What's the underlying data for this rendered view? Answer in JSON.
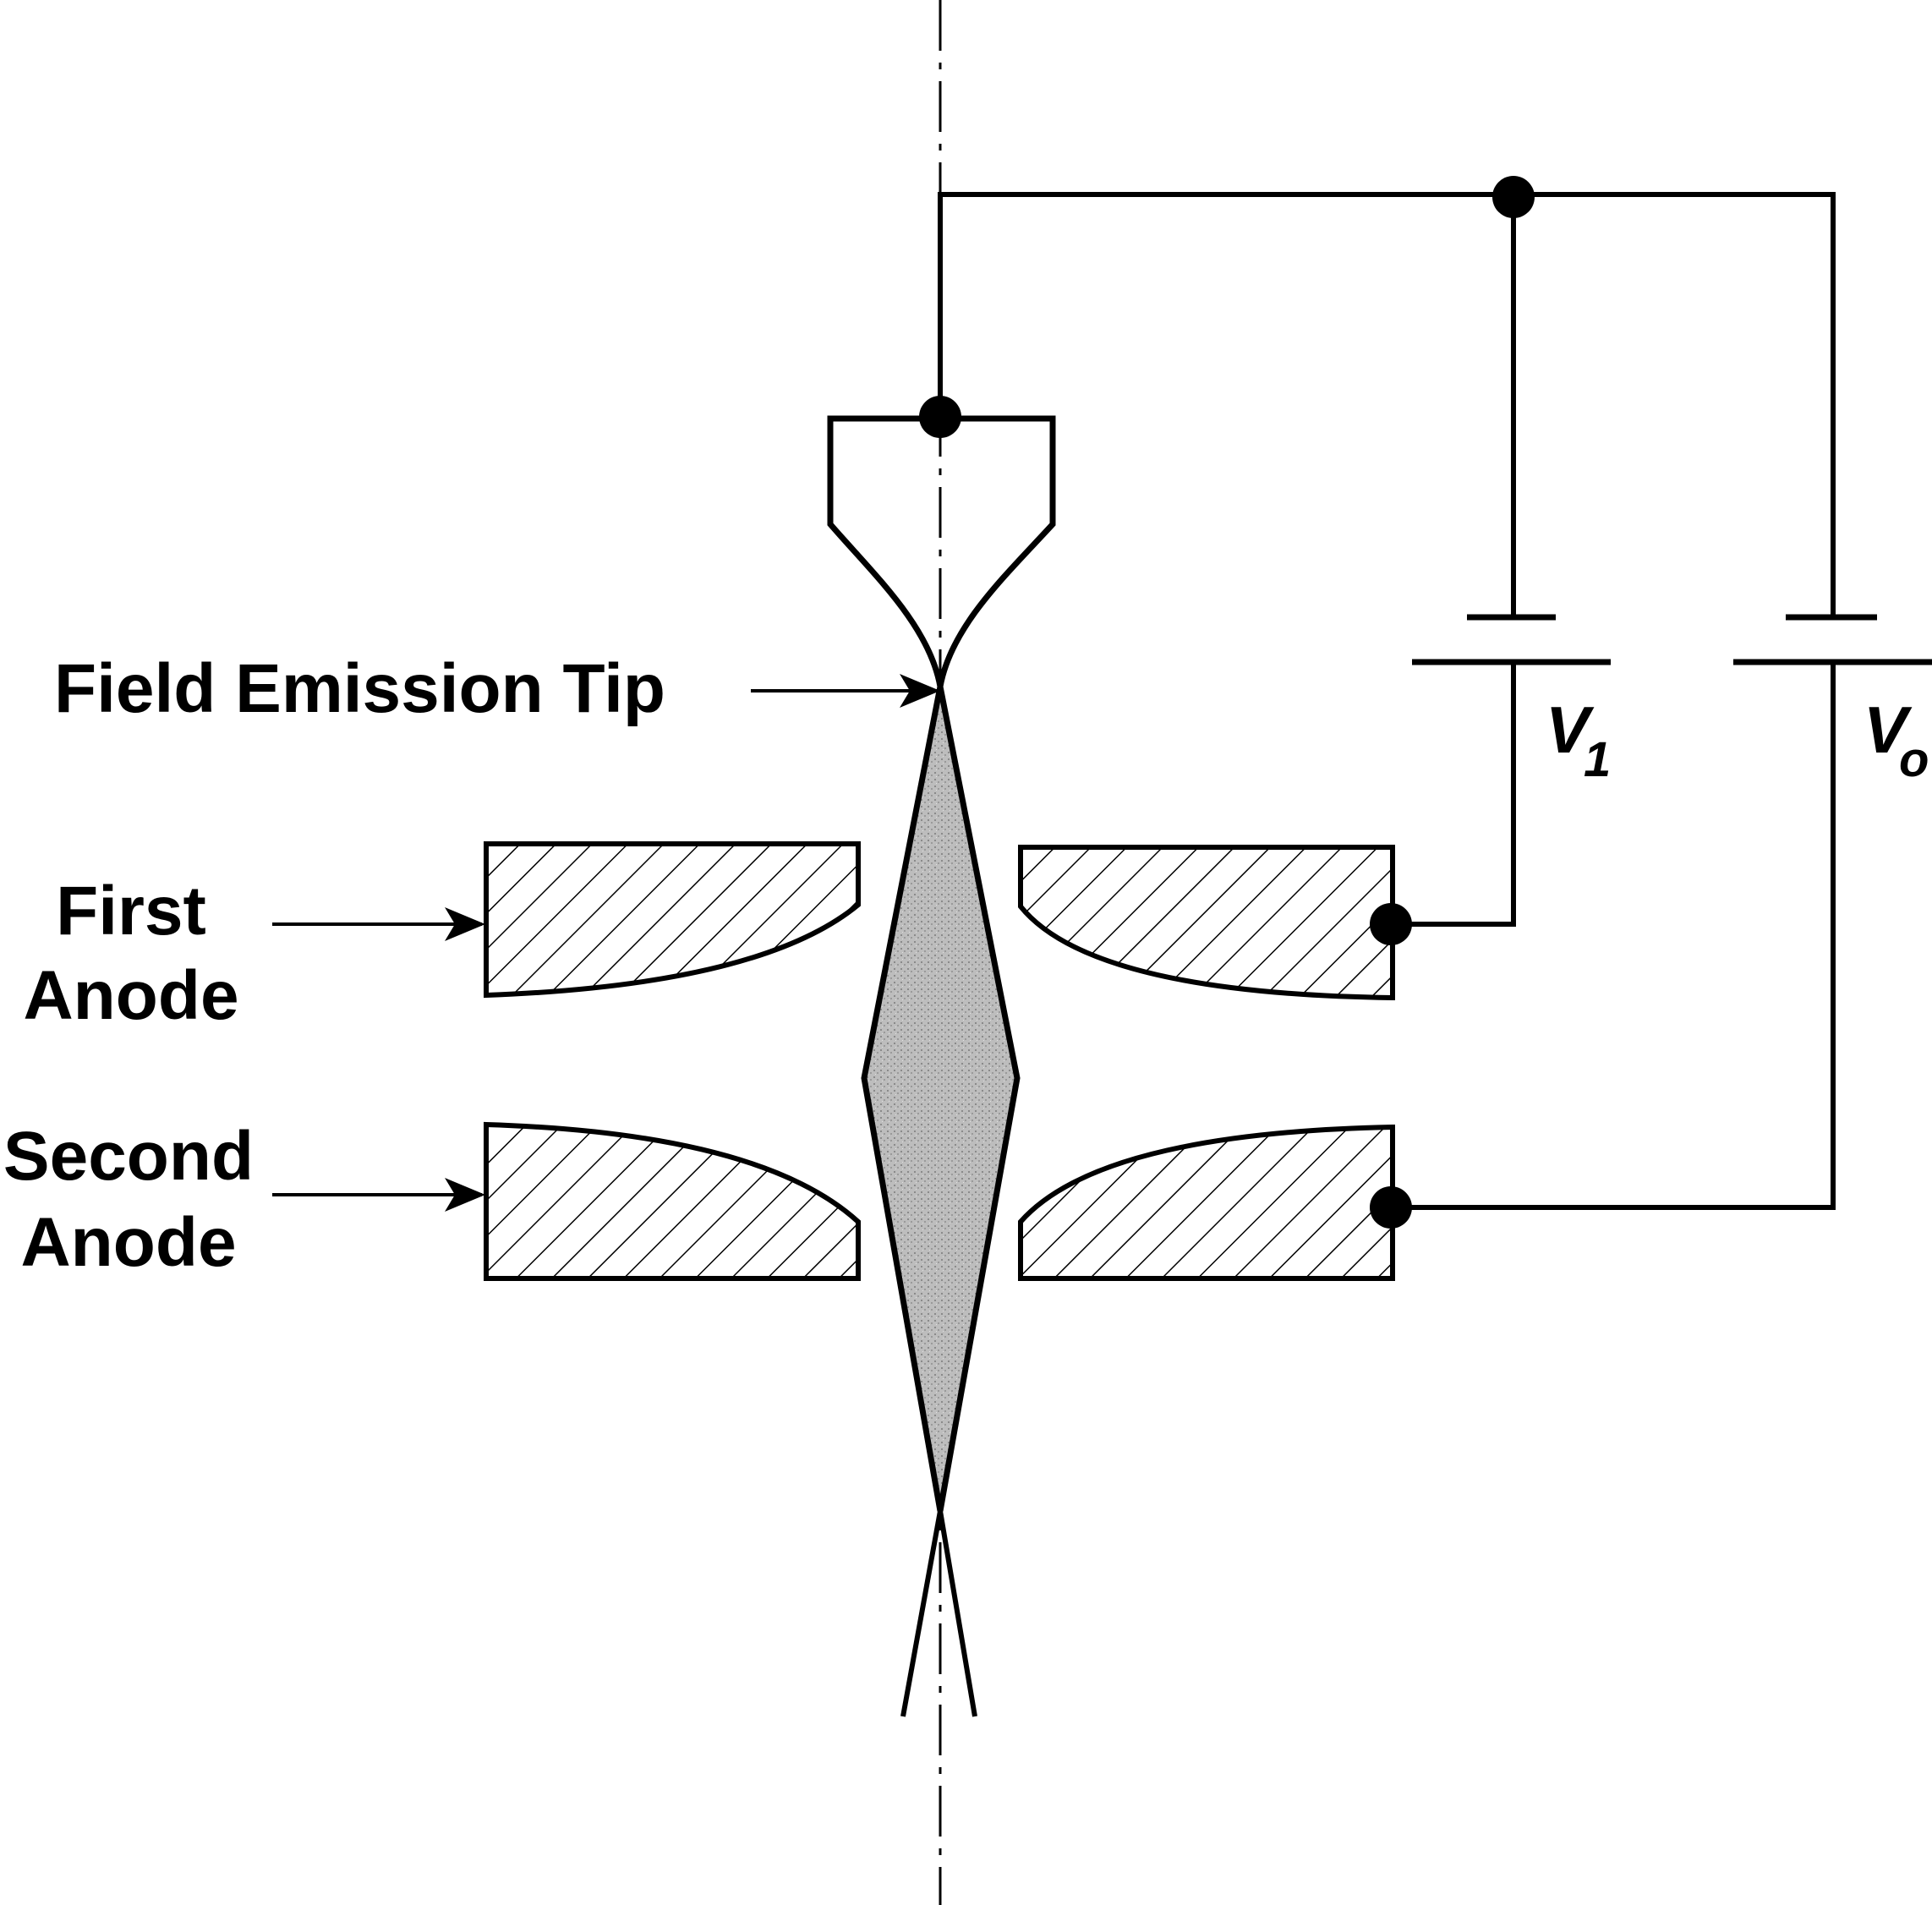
{
  "labels": {
    "field_emission_tip": "Field Emission Tip",
    "first_anode_line1": "First",
    "first_anode_line2": "Anode",
    "second_anode_line1": "Second",
    "second_anode_line2": "Anode",
    "v1_main": "V",
    "v1_sub": "1",
    "vo_main": "V",
    "vo_sub": "o"
  },
  "colors": {
    "line": "#000000",
    "beam_fill": "#b9b9b9",
    "background": "#ffffff"
  }
}
